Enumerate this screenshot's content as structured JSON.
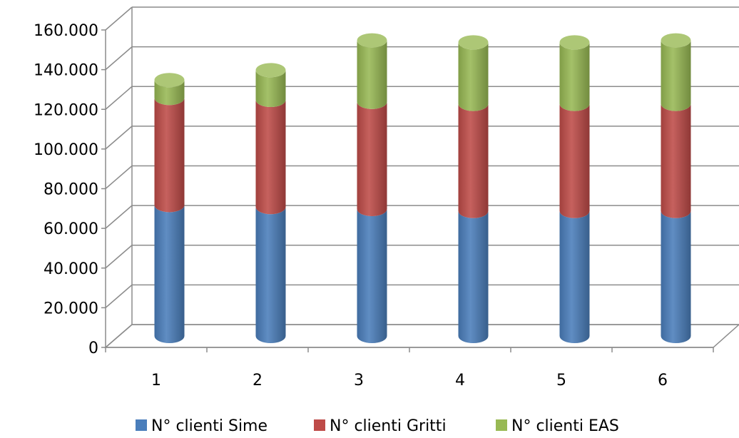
{
  "chart_data": {
    "type": "bar",
    "stacked": true,
    "style": "3d-cylinder",
    "categories": [
      "1",
      "2",
      "3",
      "4",
      "5",
      "6"
    ],
    "series": [
      {
        "name": "N° clienti Sime",
        "color": "#4a7ebb",
        "values": [
          66000,
          65000,
          64000,
          63000,
          63000,
          63000
        ]
      },
      {
        "name": "N° clienti Gritti",
        "color": "#be4b48",
        "values": [
          54000,
          54000,
          54000,
          54000,
          54000,
          54000
        ]
      },
      {
        "name": "N° clienti EAS",
        "color": "#98b954",
        "values": [
          9000,
          15000,
          31000,
          31000,
          31000,
          32000
        ]
      }
    ],
    "y_ticks": [
      "0",
      "20.000",
      "40.000",
      "60.000",
      "80.000",
      "100.000",
      "120.000",
      "140.000",
      "160.000"
    ],
    "ylim": [
      0,
      160000
    ],
    "grid": true,
    "legend_position": "bottom"
  }
}
